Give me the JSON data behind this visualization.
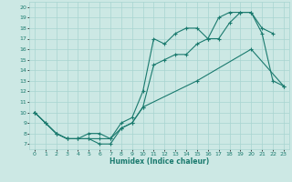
{
  "xlabel": "Humidex (Indice chaleur)",
  "xlim": [
    -0.5,
    23.5
  ],
  "ylim": [
    6.5,
    20.5
  ],
  "xticks": [
    0,
    1,
    2,
    3,
    4,
    5,
    6,
    7,
    8,
    9,
    10,
    11,
    12,
    13,
    14,
    15,
    16,
    17,
    18,
    19,
    20,
    21,
    22,
    23
  ],
  "yticks": [
    7,
    8,
    9,
    10,
    11,
    12,
    13,
    14,
    15,
    16,
    17,
    18,
    19,
    20
  ],
  "line_color": "#1a7a6e",
  "bg_color": "#cce8e4",
  "grid_color": "#a8d4d0",
  "line1_x": [
    0,
    1,
    2,
    3,
    4,
    5,
    6,
    7,
    8,
    9,
    10,
    11,
    12,
    13,
    14,
    15,
    16,
    17,
    18,
    19,
    20,
    21,
    22
  ],
  "line1_y": [
    10,
    9,
    8,
    7.5,
    7.5,
    7.5,
    7.5,
    7.5,
    9,
    9.5,
    12,
    17,
    16.5,
    17.5,
    18,
    18,
    17,
    17,
    18.5,
    19.5,
    19.5,
    18,
    17.5
  ],
  "line2_x": [
    0,
    1,
    2,
    3,
    4,
    5,
    6,
    7,
    8,
    9,
    10,
    11,
    12,
    13,
    14,
    15,
    16,
    17,
    18,
    19,
    20,
    21,
    22,
    23
  ],
  "line2_y": [
    10,
    9,
    8,
    7.5,
    7.5,
    7.5,
    7,
    7,
    8.5,
    9,
    10.5,
    14.5,
    15,
    15.5,
    15.5,
    16.5,
    17,
    19,
    19.5,
    19.5,
    19.5,
    17.5,
    13,
    12.5
  ],
  "line3_x": [
    0,
    2,
    3,
    4,
    5,
    6,
    7,
    8,
    9,
    10,
    15,
    20,
    23
  ],
  "line3_y": [
    10,
    8,
    7.5,
    7.5,
    8,
    8,
    7.5,
    8.5,
    9,
    10.5,
    13,
    16,
    12.5
  ]
}
